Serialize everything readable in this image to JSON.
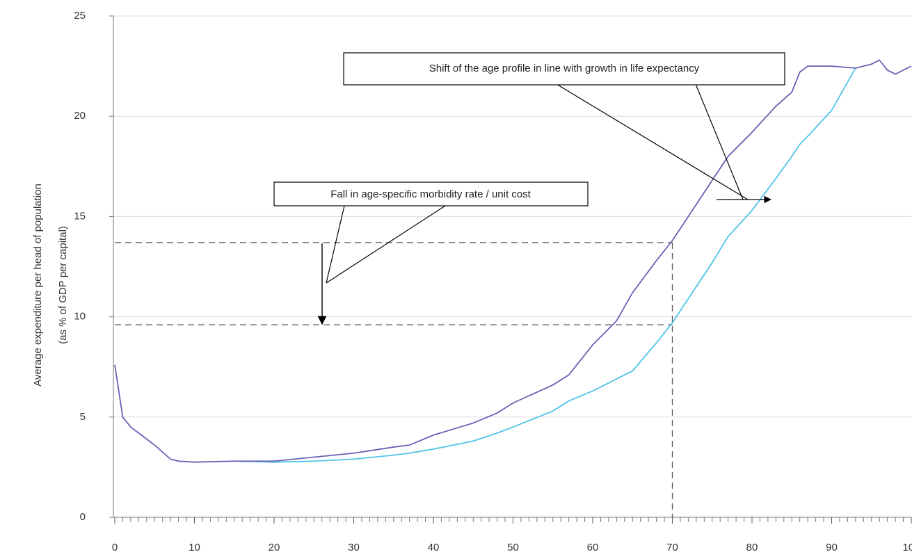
{
  "chart_data": {
    "type": "line",
    "ylabel": [
      "Average expenditure per head of population",
      "(as % of GDP per capital)"
    ],
    "annotations": [
      "Shift of the age profile in line with growth in life expectancy",
      "Fall in age-specific morbidity rate / unit cost"
    ],
    "x": [
      0,
      1,
      2,
      3,
      5,
      7,
      8,
      10,
      15,
      20,
      25,
      30,
      35,
      37,
      40,
      45,
      48,
      50,
      55,
      57,
      60,
      63,
      65,
      68,
      70,
      73,
      75,
      77,
      80,
      83,
      85,
      86,
      87,
      90,
      93,
      95,
      96,
      97,
      98,
      100
    ],
    "series": [
      {
        "color": "#4fc3e8",
        "values": [
          null,
          null,
          null,
          null,
          null,
          null,
          null,
          null,
          2.8,
          2.75,
          2.8,
          2.9,
          3.1,
          3.2,
          3.4,
          3.8,
          4.2,
          4.5,
          5.3,
          5.8,
          6.3,
          6.9,
          7.3,
          8.7,
          9.7,
          11.5,
          12.7,
          14.0,
          15.3,
          16.9,
          18.0,
          18.6,
          19.0,
          20.3,
          22.4,
          null,
          null,
          null,
          null,
          null
        ]
      },
      {
        "color": "#6a5fb5",
        "values": [
          7.6,
          5.0,
          4.5,
          4.2,
          3.6,
          2.9,
          2.8,
          2.75,
          2.8,
          2.8,
          3.0,
          3.2,
          3.5,
          3.6,
          4.1,
          4.7,
          5.2,
          5.7,
          6.6,
          7.1,
          8.6,
          9.8,
          11.2,
          12.8,
          13.8,
          15.6,
          16.8,
          18.0,
          19.2,
          20.5,
          21.2,
          22.2,
          22.5,
          22.5,
          22.4,
          22.6,
          22.8,
          22.3,
          22.1,
          22.5
        ]
      }
    ],
    "hlines": [
      13.7,
      9.6
    ],
    "vlines": [
      70
    ],
    "xlim": [
      0,
      100
    ],
    "xticks": [
      0,
      10,
      20,
      30,
      40,
      50,
      60,
      70,
      80,
      90,
      100
    ],
    "ylim": [
      0,
      25
    ],
    "yticks": [
      0,
      5,
      10,
      15,
      20,
      25
    ],
    "grid": true
  }
}
